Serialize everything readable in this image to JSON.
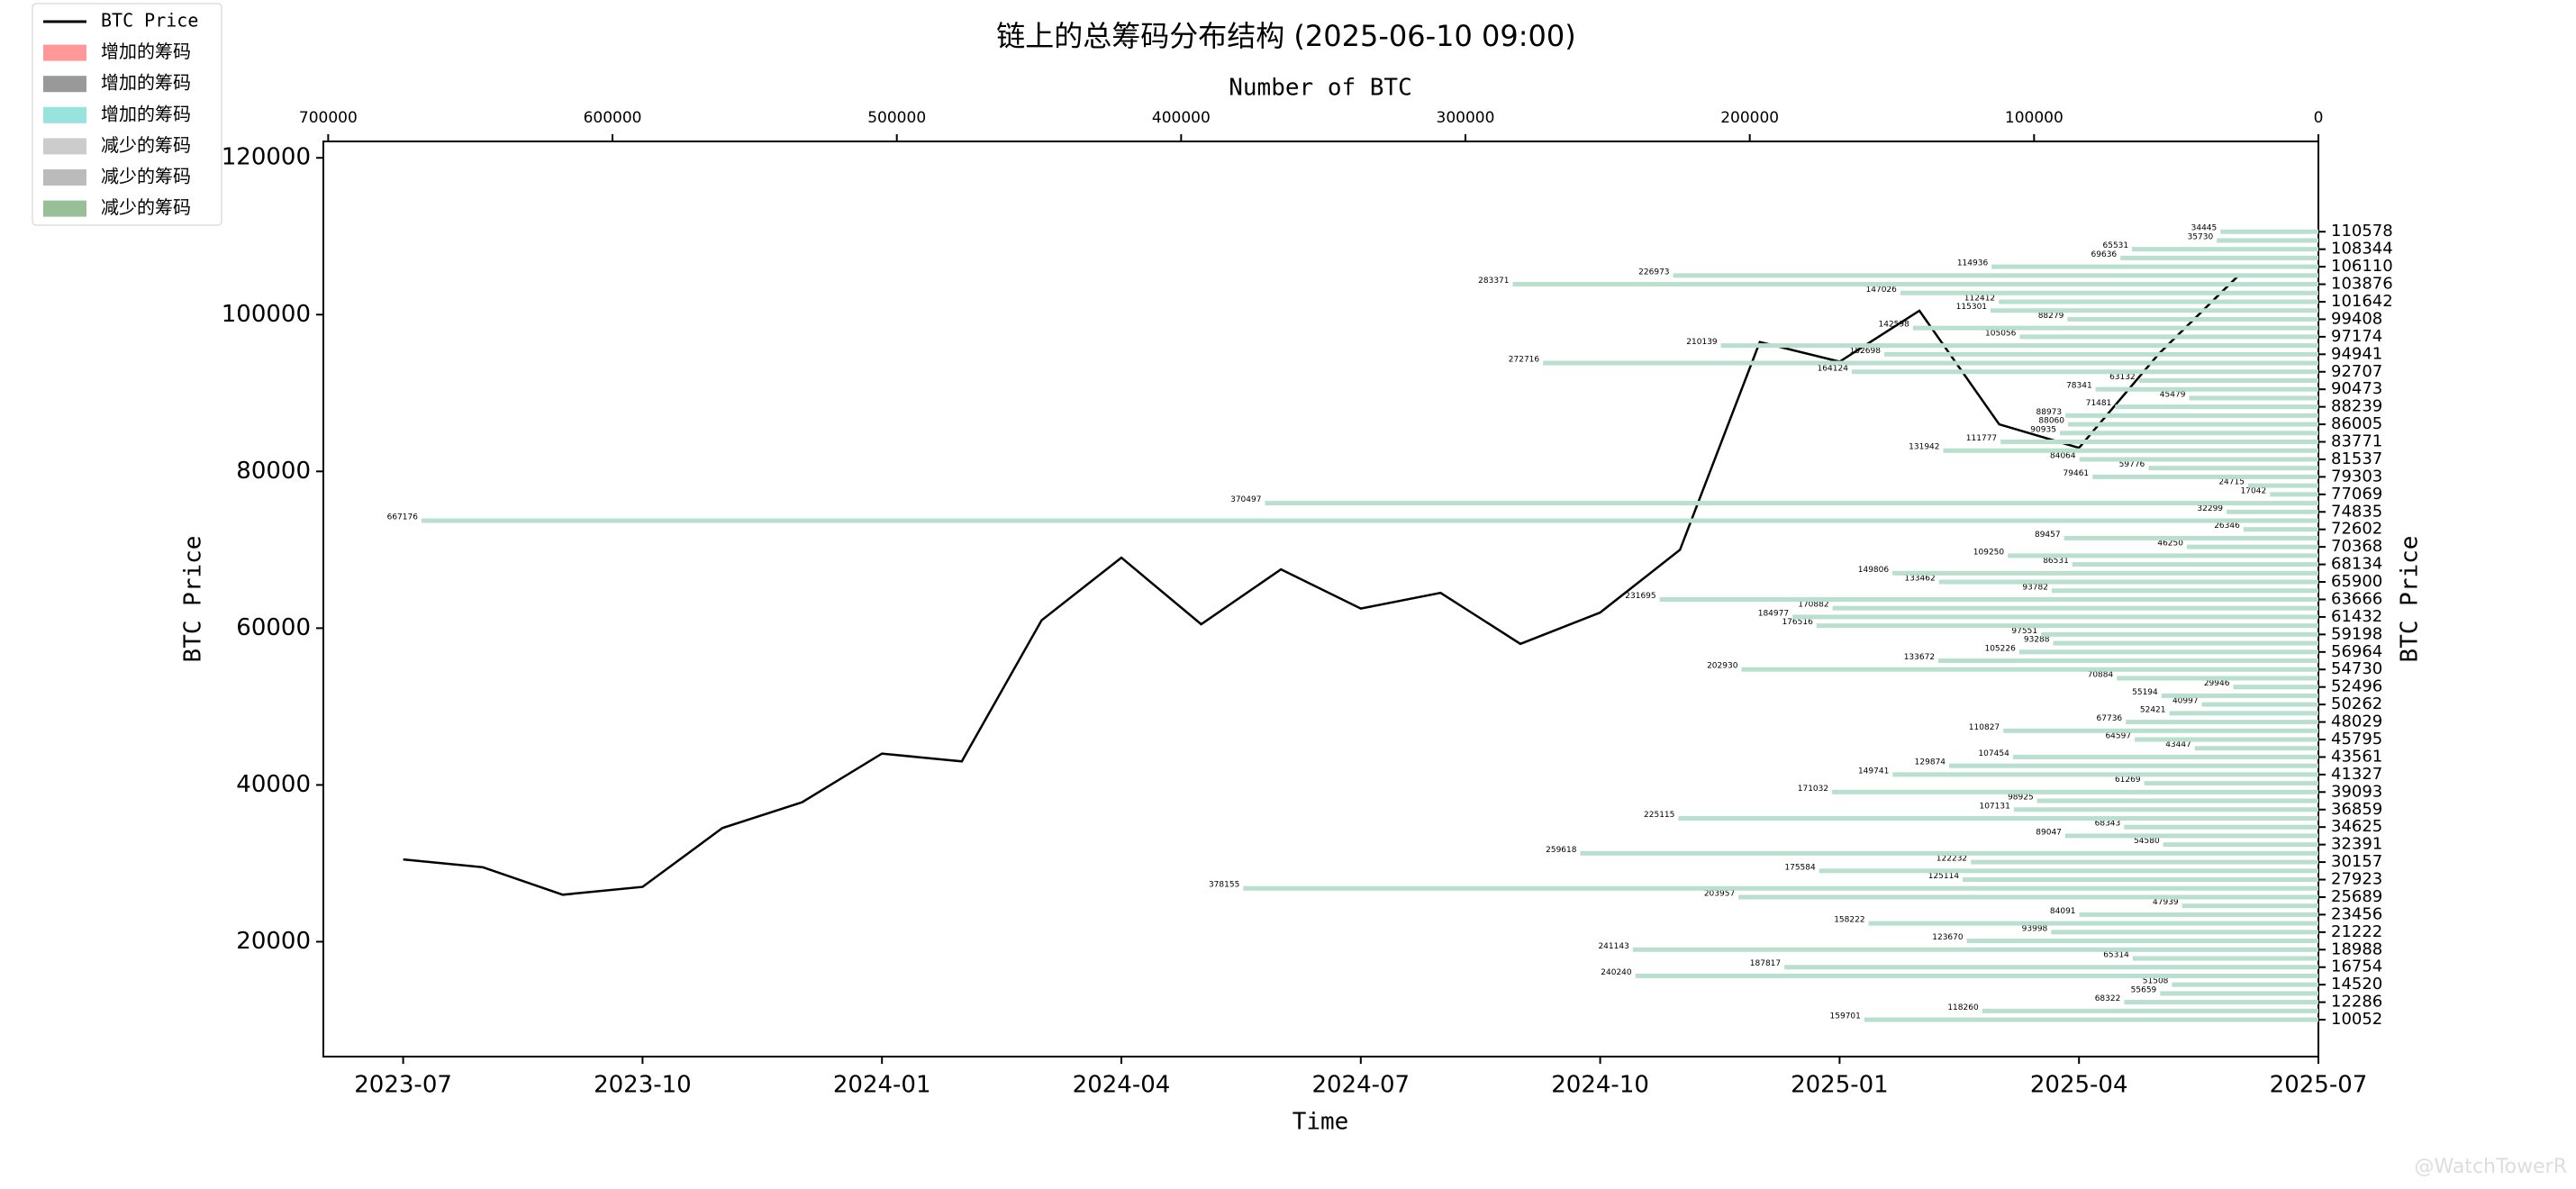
{
  "chart_data": [
    {
      "type": "line",
      "title": "链上的总筹码分布结构 (2025-06-10 09:00)",
      "x_label": "Time",
      "y_label": "BTC Price",
      "x": [
        "2023-07",
        "2023-08",
        "2023-09",
        "2023-10",
        "2023-11",
        "2023-12",
        "2024-01",
        "2024-02",
        "2024-03",
        "2024-04",
        "2024-05",
        "2024-06",
        "2024-07",
        "2024-08",
        "2024-09",
        "2024-10",
        "2024-11",
        "2024-12",
        "2025-01",
        "2025-02",
        "2025-03",
        "2025-04",
        "2025-05",
        "2025-06"
      ],
      "series": [
        {
          "name": "BTC Price",
          "color": "#000000",
          "values": [
            30500,
            29500,
            26000,
            27000,
            34500,
            37800,
            44000,
            43000,
            61000,
            69000,
            60500,
            67500,
            62500,
            64500,
            58000,
            62000,
            70000,
            96500,
            94000,
            100500,
            86000,
            83000,
            95000,
            105000
          ]
        }
      ],
      "xlim": [
        "2023-06",
        "2025-07"
      ],
      "xticks": [
        "2023-07",
        "2023-10",
        "2024-01",
        "2024-04",
        "2024-07",
        "2024-10",
        "2025-01",
        "2025-04",
        "2025-07"
      ],
      "ylim": [
        5345,
        122096
      ],
      "yticks": [
        20000,
        40000,
        60000,
        80000,
        100000,
        120000
      ],
      "watermark": "@WatchTowerR"
    },
    {
      "type": "barh",
      "x_label": "Number of BTC",
      "y_label": "BTC Price",
      "xlim": [
        701700,
        0
      ],
      "xticks": [
        700000,
        600000,
        500000,
        400000,
        300000,
        200000,
        100000,
        0
      ],
      "ylim": [
        5345,
        122096
      ],
      "yticks": [
        110578,
        108344,
        106110,
        103876,
        101642,
        99408,
        97174,
        94941,
        92707,
        90473,
        88239,
        86005,
        83771,
        81537,
        79303,
        77069,
        74835,
        72602,
        70368,
        68134,
        65900,
        63666,
        61432,
        59198,
        56964,
        54730,
        52496,
        50262,
        48029,
        45795,
        43561,
        41327,
        39093,
        36859,
        34625,
        32391,
        30157,
        27923,
        25689,
        23456,
        21222,
        18988,
        16754,
        14520,
        12286,
        10052
      ],
      "color": "#b9dfcf",
      "y": [
        10052,
        11169,
        12286,
        13403,
        14520,
        15637,
        16754,
        17871,
        18988,
        20105,
        21222,
        22339,
        23456,
        24573,
        25689,
        26806,
        27923,
        29040,
        30157,
        31274,
        32391,
        33508,
        34625,
        35742,
        36859,
        37976,
        39093,
        40210,
        41327,
        42444,
        43561,
        44678,
        45795,
        46912,
        48029,
        49146,
        50262,
        51379,
        52496,
        53613,
        54730,
        55847,
        56964,
        58081,
        59198,
        60315,
        61432,
        62549,
        63666,
        64783,
        65900,
        67017,
        68134,
        69251,
        70368,
        71485,
        72602,
        73718,
        74835,
        75952,
        77069,
        78186,
        79303,
        80420,
        81537,
        82654,
        83771,
        84888,
        86005,
        87122,
        88239,
        89356,
        90473,
        91590,
        92707,
        93824,
        94941,
        96058,
        97174,
        98291,
        99408,
        100525,
        101642,
        102759,
        103876,
        104993,
        106110,
        107227,
        108344,
        109461,
        110578
      ],
      "values": [
        159701,
        118260,
        68322,
        55659,
        51508,
        240240,
        187817,
        65314,
        241143,
        123670,
        93998,
        158222,
        84091,
        47939,
        203957,
        378155,
        125114,
        175584,
        122232,
        259618,
        54580,
        89047,
        68343,
        225115,
        107131,
        98925,
        171032,
        61269,
        149741,
        129874,
        107454,
        43447,
        64597,
        110827,
        67736,
        52421,
        40997,
        55194,
        29946,
        70884,
        202930,
        133672,
        105226,
        93288,
        97551,
        176516,
        184977,
        170882,
        231695,
        93782,
        133462,
        149806,
        86531,
        109250,
        46250,
        89457,
        26346,
        667176,
        32299,
        370497,
        17042,
        24715,
        79461,
        59776,
        84064,
        131942,
        111777,
        90935,
        88060,
        88973,
        71481,
        45479,
        78341,
        63132,
        164124,
        272716,
        152698,
        210139,
        105056,
        142598,
        88279,
        115301,
        112412,
        147026,
        283371,
        226973,
        114936,
        69636,
        65531,
        35730,
        34445
      ],
      "legend": [
        {
          "name": "增加的筹码",
          "color": "#ff9999"
        },
        {
          "name": "增加的筹码",
          "color": "#999999"
        },
        {
          "name": "增加的筹码",
          "color": "#99e3dd"
        },
        {
          "name": "减少的筹码",
          "color": "#cccccc"
        },
        {
          "name": "减少的筹码",
          "color": "#bbbbbb"
        },
        {
          "name": "减少的筹码",
          "color": "#98bf98"
        }
      ]
    }
  ]
}
